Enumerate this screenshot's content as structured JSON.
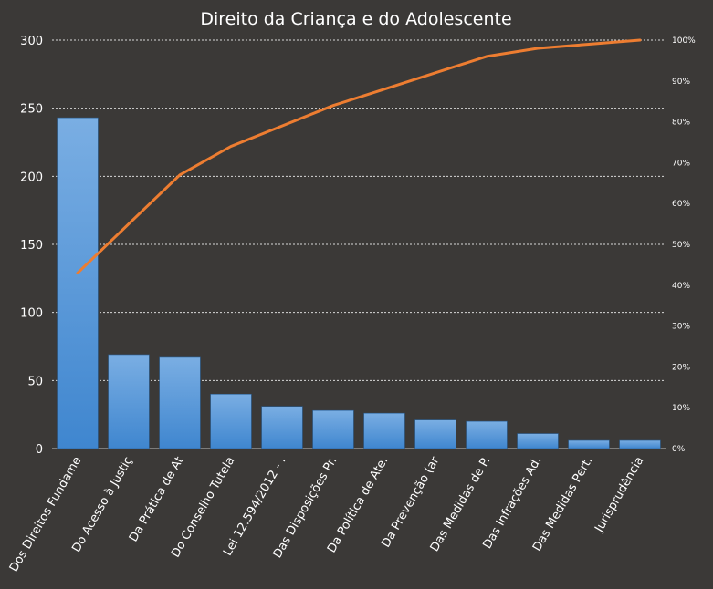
{
  "chart_data": {
    "type": "bar",
    "title": "Direito da Criança e do Adolescente",
    "categories": [
      "Dos Direitos Fundame",
      "Do Acesso à Justiç",
      "Da Prática de At",
      "Do Conselho Tutela",
      "Lei 12.594/2012 - .",
      "Das Disposições Pr.",
      "Da Política de Ate.",
      "Da Prevenção (ar",
      "Das Medidas de P.",
      "Das Infrações Ad.",
      "Das Medidas Pert.",
      "Jurisprudência"
    ],
    "series": [
      {
        "type": "bar",
        "values": [
          243,
          69,
          67,
          40,
          31,
          28,
          26,
          21,
          20,
          11,
          6,
          6
        ]
      },
      {
        "type": "line",
        "axis": "right",
        "values": [
          43,
          55,
          67,
          74,
          79,
          84,
          88,
          92,
          96,
          98,
          99,
          100
        ]
      }
    ],
    "yticks": [
      "0",
      "50",
      "100",
      "150",
      "200",
      "250",
      "300"
    ],
    "ylim": [
      0,
      300
    ],
    "y2ticks": [
      "0%",
      "10%",
      "20%",
      "30%",
      "40%",
      "50%",
      "60%",
      "70%",
      "80%",
      "90%",
      "100%"
    ],
    "y2lim": [
      0,
      100
    ],
    "grid": true,
    "legend": "none",
    "colors": {
      "background": "#3b3937",
      "bar_top": "#7aaee3",
      "bar_bottom": "#3f86cf",
      "line": "#ed7d31",
      "grid": "#d9d9d9",
      "text": "#ffffff"
    }
  }
}
